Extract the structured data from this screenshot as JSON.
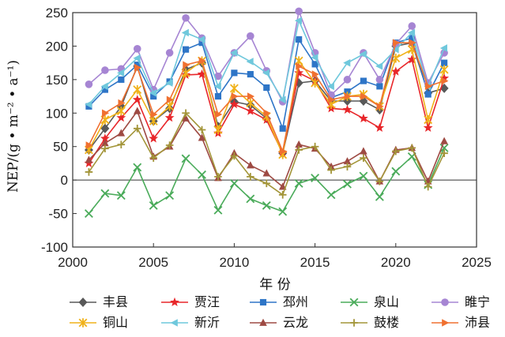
{
  "chart_data": {
    "type": "line",
    "xlabel": "年 份",
    "ylabel": "NEP/(g • m⁻² • a⁻¹)",
    "xlim": [
      2000,
      2025
    ],
    "ylim": [
      -100,
      250
    ],
    "xticks": [
      2000,
      2005,
      2010,
      2015,
      2020,
      2025
    ],
    "yticks": [
      -100,
      -50,
      0,
      50,
      100,
      150,
      200,
      250
    ],
    "grid": false,
    "legend_position": "bottom",
    "x": [
      2001,
      2002,
      2003,
      2004,
      2005,
      2006,
      2007,
      2008,
      2009,
      2010,
      2011,
      2012,
      2013,
      2014,
      2015,
      2016,
      2017,
      2018,
      2019,
      2020,
      2021,
      2022,
      2023
    ],
    "series": [
      {
        "name": "丰县",
        "color": "#595959",
        "marker": "diamond",
        "values": [
          45,
          77,
          110,
          170,
          88,
          107,
          165,
          175,
          80,
          117,
          112,
          92,
          40,
          145,
          148,
          118,
          118,
          118,
          105,
          200,
          205,
          130,
          137
        ]
      },
      {
        "name": "贾汪",
        "color": "#e8262a",
        "marker": "star",
        "values": [
          25,
          62,
          93,
          120,
          62,
          93,
          157,
          158,
          70,
          113,
          103,
          90,
          40,
          160,
          148,
          107,
          105,
          92,
          78,
          162,
          180,
          78,
          152
        ]
      },
      {
        "name": "邳州",
        "color": "#2e75c7",
        "marker": "square",
        "values": [
          110,
          135,
          150,
          172,
          125,
          147,
          195,
          205,
          125,
          160,
          158,
          138,
          77,
          210,
          173,
          123,
          132,
          148,
          140,
          205,
          212,
          128,
          175
        ]
      },
      {
        "name": "泉山",
        "color": "#4aab5a",
        "marker": "x",
        "values": [
          -50,
          -20,
          -23,
          19,
          -38,
          -23,
          32,
          8,
          -45,
          -5,
          -28,
          -38,
          -47,
          -5,
          3,
          -22,
          -6,
          6,
          -25,
          13,
          35,
          -7,
          48
        ]
      },
      {
        "name": "睢宁",
        "color": "#a685d3",
        "marker": "circle",
        "values": [
          143,
          164,
          166,
          196,
          135,
          190,
          242,
          212,
          155,
          190,
          215,
          163,
          117,
          252,
          190,
          127,
          150,
          190,
          150,
          203,
          230,
          145,
          190
        ]
      },
      {
        "name": "铜山",
        "color": "#f0b21a",
        "marker": "asterisk",
        "values": [
          45,
          90,
          103,
          135,
          88,
          110,
          160,
          178,
          75,
          137,
          115,
          95,
          38,
          178,
          145,
          113,
          125,
          128,
          110,
          182,
          195,
          90,
          165
        ]
      },
      {
        "name": "新沂",
        "color": "#6fc8dc",
        "marker": "triangle-left",
        "values": [
          113,
          140,
          160,
          182,
          130,
          145,
          220,
          210,
          140,
          190,
          177,
          160,
          120,
          238,
          183,
          140,
          175,
          188,
          170,
          195,
          220,
          140,
          197
        ]
      },
      {
        "name": "云龙",
        "color": "#9e4a43",
        "marker": "triangle-up",
        "values": [
          30,
          55,
          70,
          103,
          35,
          50,
          92,
          63,
          3,
          40,
          22,
          10,
          -10,
          53,
          47,
          20,
          28,
          43,
          -2,
          45,
          48,
          -2,
          58
        ]
      },
      {
        "name": "鼓楼",
        "color": "#a39539",
        "marker": "plus",
        "values": [
          12,
          47,
          53,
          77,
          33,
          52,
          100,
          75,
          5,
          36,
          5,
          -5,
          -22,
          45,
          50,
          15,
          20,
          33,
          -2,
          43,
          48,
          -10,
          40
        ]
      },
      {
        "name": "沛县",
        "color": "#f07030",
        "marker": "triangle-right",
        "values": [
          52,
          100,
          115,
          168,
          98,
          120,
          172,
          178,
          98,
          125,
          125,
          100,
          43,
          170,
          158,
          120,
          125,
          125,
          110,
          205,
          205,
          140,
          148
        ]
      }
    ]
  }
}
